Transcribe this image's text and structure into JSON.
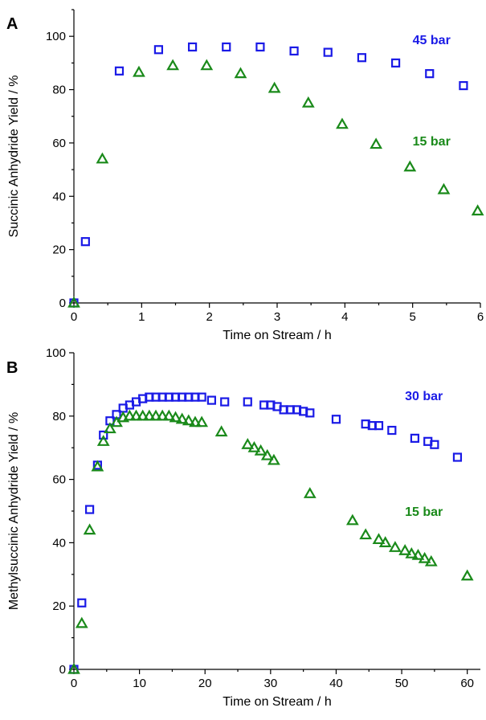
{
  "colors": {
    "blue": "#1a1ae6",
    "green": "#1a8a1a"
  },
  "chart_data": [
    {
      "panel_label": "A",
      "type": "scatter",
      "xlabel": "Time on Stream / h",
      "ylabel": "Succinic Anhydride Yield / %",
      "xlim": [
        0,
        6
      ],
      "ylim": [
        0,
        110
      ],
      "xticks": [
        0,
        1,
        2,
        3,
        4,
        5,
        6
      ],
      "yticks": [
        0,
        20,
        40,
        60,
        80,
        100
      ],
      "series": [
        {
          "name": "45 bar",
          "marker": "square",
          "color": "#1a1ae6",
          "x": [
            0,
            0.17,
            0.67,
            1.25,
            1.75,
            2.25,
            2.75,
            3.25,
            3.75,
            4.25,
            4.75,
            5.25,
            5.75
          ],
          "y": [
            0,
            23,
            87,
            95,
            96,
            96,
            96,
            94.5,
            94,
            92,
            90,
            86,
            81.5
          ]
        },
        {
          "name": "15 bar",
          "marker": "triangle",
          "color": "#1a8a1a",
          "x": [
            0,
            0.42,
            0.96,
            1.46,
            1.96,
            2.46,
            2.96,
            3.46,
            3.96,
            4.46,
            4.96,
            5.46,
            5.96
          ],
          "y": [
            0,
            54,
            86.5,
            89,
            89,
            86,
            80.5,
            75,
            67,
            59.5,
            51,
            42.5,
            34.5
          ]
        }
      ],
      "annotations": [
        {
          "text": "45 bar",
          "series": 0,
          "x": 5.0,
          "y": 97
        },
        {
          "text": "15 bar",
          "series": 1,
          "x": 5.0,
          "y": 59
        }
      ]
    },
    {
      "panel_label": "B",
      "type": "scatter",
      "xlabel": "Time on Stream / h",
      "ylabel": "Methylsuccinic Anhydride Yield / %",
      "xlim": [
        0,
        62
      ],
      "ylim": [
        0,
        100
      ],
      "xticks": [
        0,
        10,
        20,
        30,
        40,
        50,
        60
      ],
      "yticks": [
        0,
        20,
        40,
        60,
        80,
        100
      ],
      "series": [
        {
          "name": "30 bar",
          "marker": "square",
          "color": "#1a1ae6",
          "x": [
            0,
            1.2,
            2.4,
            3.6,
            4.5,
            5.5,
            6.5,
            7.5,
            8.5,
            9.5,
            10.5,
            11.5,
            12.5,
            13.5,
            14.5,
            15.5,
            16.5,
            17.5,
            18.5,
            19.5,
            21,
            23,
            26.5,
            29,
            30,
            31,
            32,
            33,
            34,
            35,
            36,
            40,
            44.5,
            45.5,
            46.5,
            48.5,
            52,
            54,
            55,
            58.5
          ],
          "y": [
            0,
            21,
            50.5,
            64.5,
            74,
            78.5,
            80.5,
            82.5,
            83.5,
            84.5,
            85.5,
            86,
            86,
            86,
            86,
            86,
            86,
            86,
            86,
            86,
            85,
            84.5,
            84.5,
            83.5,
            83.5,
            83,
            82,
            82,
            82,
            81.5,
            81,
            79,
            77.5,
            77,
            77,
            75.5,
            73,
            72,
            71,
            67
          ]
        },
        {
          "name": "15 bar",
          "marker": "triangle",
          "color": "#1a8a1a",
          "x": [
            0,
            1.2,
            2.4,
            3.6,
            4.5,
            5.5,
            6.5,
            7.5,
            8.5,
            9.5,
            10.5,
            11.5,
            12.5,
            13.5,
            14.5,
            15.5,
            16.5,
            17.5,
            18.5,
            19.5,
            22.5,
            26.5,
            27.5,
            28.5,
            29.5,
            30.5,
            36,
            42.5,
            44.5,
            46.5,
            47.5,
            49,
            50.5,
            51.5,
            52.5,
            53.5,
            54.5,
            60
          ],
          "y": [
            0,
            14.5,
            44,
            64,
            72,
            76,
            78,
            79.5,
            80,
            80,
            80,
            80,
            80,
            80,
            80,
            79.5,
            79,
            78.5,
            78,
            78,
            75,
            71,
            70,
            69,
            67.5,
            66,
            55.5,
            47,
            42.5,
            41,
            40,
            38.5,
            37.5,
            36.5,
            36,
            35,
            34,
            29.5
          ]
        }
      ],
      "annotations": [
        {
          "text": "30 bar",
          "series": 0,
          "x": 50.5,
          "y": 85
        },
        {
          "text": "15 bar",
          "series": 1,
          "x": 50.5,
          "y": 48.5
        }
      ]
    }
  ]
}
